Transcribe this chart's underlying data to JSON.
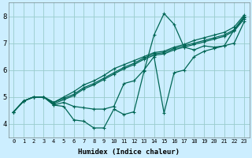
{
  "xlabel": "Humidex (Indice chaleur)",
  "background_color": "#cceeff",
  "grid_color": "#99cccc",
  "line_color": "#006655",
  "xlim": [
    -0.5,
    23.5
  ],
  "ylim": [
    3.5,
    8.5
  ],
  "xticks": [
    0,
    1,
    2,
    3,
    4,
    5,
    6,
    7,
    8,
    9,
    10,
    11,
    12,
    13,
    14,
    15,
    16,
    17,
    18,
    19,
    20,
    21,
    22,
    23
  ],
  "yticks": [
    4,
    5,
    6,
    7,
    8
  ],
  "series": [
    [
      4.45,
      4.85,
      5.0,
      5.0,
      4.7,
      4.65,
      4.15,
      4.1,
      3.85,
      3.85,
      4.55,
      4.35,
      4.45,
      5.95,
      7.3,
      8.1,
      7.7,
      6.85,
      6.75,
      6.9,
      6.85,
      6.9,
      7.5,
      8.0
    ],
    [
      4.45,
      4.85,
      5.0,
      5.0,
      4.7,
      4.8,
      4.65,
      4.6,
      4.55,
      4.55,
      4.65,
      5.5,
      5.6,
      6.0,
      6.5,
      4.4,
      5.9,
      6.0,
      6.5,
      6.7,
      6.8,
      6.9,
      7.0,
      7.8
    ],
    [
      4.45,
      4.85,
      5.0,
      5.0,
      4.8,
      5.0,
      5.2,
      5.45,
      5.6,
      5.8,
      6.05,
      6.2,
      6.35,
      6.5,
      6.65,
      6.7,
      6.85,
      6.95,
      7.1,
      7.2,
      7.3,
      7.4,
      7.6,
      8.05
    ],
    [
      4.45,
      4.85,
      5.0,
      5.0,
      4.8,
      4.95,
      5.1,
      5.35,
      5.5,
      5.7,
      5.9,
      6.1,
      6.25,
      6.45,
      6.6,
      6.65,
      6.8,
      6.9,
      7.0,
      7.1,
      7.2,
      7.3,
      7.5,
      7.95
    ],
    [
      4.45,
      4.85,
      5.0,
      5.0,
      4.75,
      4.9,
      5.05,
      5.3,
      5.45,
      5.65,
      5.85,
      6.05,
      6.2,
      6.4,
      6.55,
      6.6,
      6.75,
      6.85,
      6.95,
      7.05,
      7.15,
      7.25,
      7.45,
      7.9
    ]
  ]
}
